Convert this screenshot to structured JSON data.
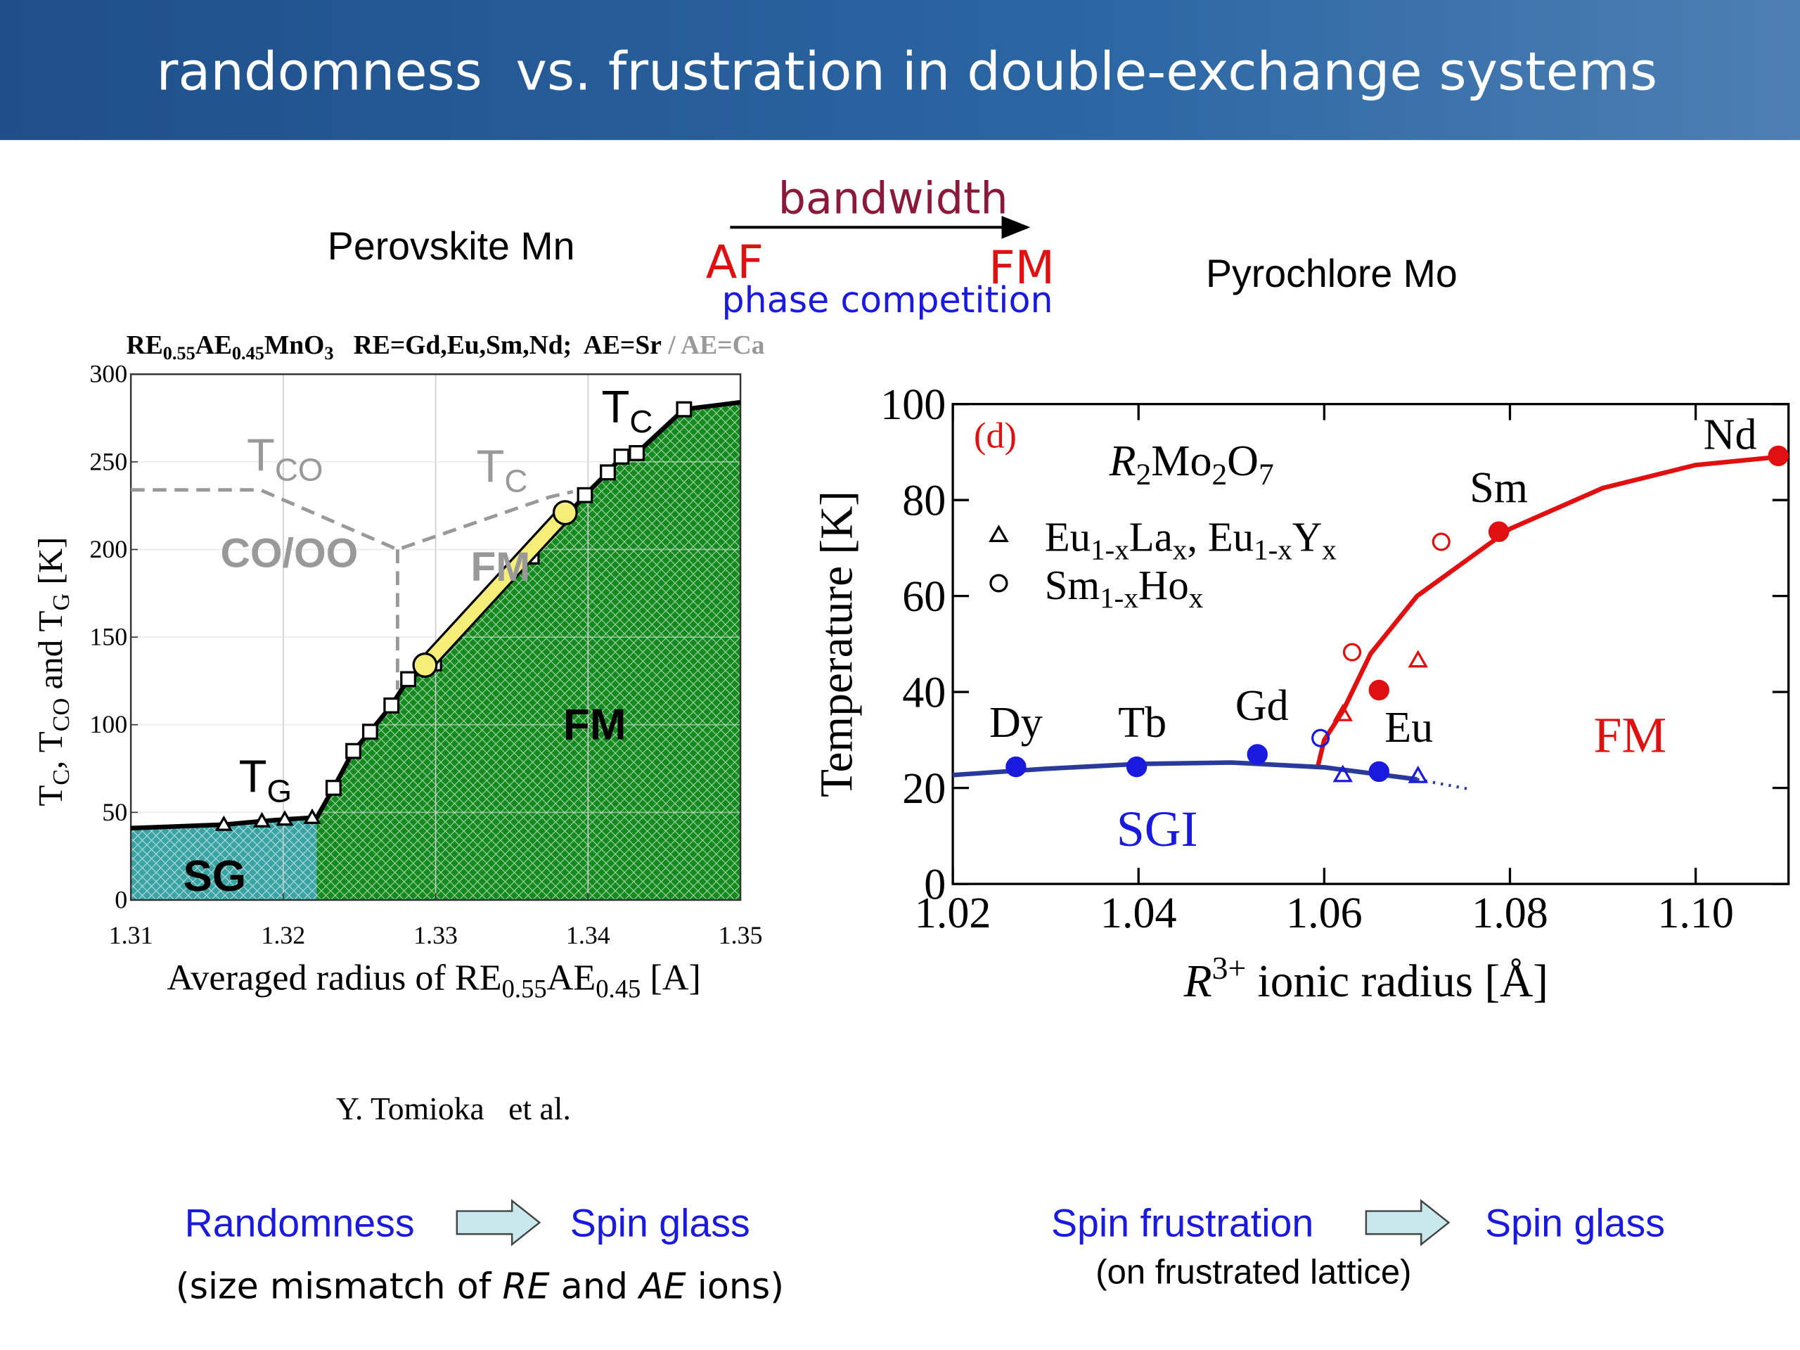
{
  "slide": {
    "title": "randomness  vs. frustration in double-exchange systems",
    "left_heading": "Perovskite Mn",
    "bandwidth": "bandwidth",
    "af": "AF",
    "fm": "FM",
    "phase_competition": "phase competition",
    "right_heading": "Pyrochlore Mo",
    "citation": "Y. Tomioka   et al.",
    "left_summary": {
      "from": "Randomness",
      "to": "Spin glass",
      "note": [
        "(size mismatch of ",
        {
          "i": "RE"
        },
        " and ",
        {
          "i": "AE"
        },
        " ions)"
      ]
    },
    "right_summary": {
      "from": "Spin frustration",
      "to": "Spin glass",
      "note": "(on frustrated lattice)"
    }
  },
  "chart_data": [
    {
      "type": "phase-diagram",
      "title": [
        "RE",
        {
          "sub": "0.55"
        },
        "AE",
        {
          "sub": "0.45"
        },
        "MnO",
        {
          "sub": "3"
        },
        "   RE=Gd,Eu,Sm,Nd;  AE=Sr",
        {
          "t": " / AE=Ca",
          "color": "#999999"
        }
      ],
      "x_label": [
        "Averaged radius of RE",
        {
          "sub": "0.55"
        },
        "AE",
        {
          "sub": "0.45"
        },
        " [A]"
      ],
      "y_label": [
        "T",
        {
          "sub": "C"
        },
        ", T",
        {
          "sub": "CO"
        },
        " and T",
        {
          "sub": "G"
        },
        " [K]"
      ],
      "xlim": [
        1.31,
        1.35
      ],
      "xticks": [
        1.31,
        1.32,
        1.33,
        1.34,
        1.35
      ],
      "ylim": [
        0,
        300
      ],
      "yticks": [
        0,
        50,
        100,
        150,
        200,
        250,
        300
      ],
      "grid": true,
      "regions": [
        {
          "label": "SG",
          "color": "#3aa3a3",
          "xlim": [
            1.31,
            1.3222
          ]
        },
        {
          "label": "FM",
          "color": "#138a1e",
          "xlim": [
            1.3222,
            1.35
          ]
        }
      ],
      "series": [
        {
          "style": "thick",
          "marker": null,
          "color": "#000000",
          "x": [
            1.31,
            1.3161,
            1.3186,
            1.3201,
            1.3219,
            1.3222,
            1.3233,
            1.3246,
            1.3257,
            1.3271,
            1.3282,
            1.3299,
            1.3363,
            1.3398,
            1.3413,
            1.3422,
            1.3432,
            1.3463,
            1.35
          ],
          "y": [
            41,
            43,
            45,
            46,
            47,
            47,
            64,
            85,
            96,
            111,
            126,
            135,
            196,
            231,
            244,
            253,
            255,
            280,
            284
          ]
        },
        {
          "style": "none",
          "marker": "triangle",
          "color": "#000000",
          "x": [
            1.3161,
            1.3186,
            1.3201,
            1.3219
          ],
          "y": [
            43,
            45,
            46,
            47
          ]
        },
        {
          "style": "none",
          "marker": "square",
          "color": "#000000",
          "x": [
            1.3233,
            1.3246,
            1.3257,
            1.3271,
            1.3282,
            1.3299,
            1.3363,
            1.3398,
            1.3413,
            1.3422,
            1.3432,
            1.3463
          ],
          "y": [
            64,
            85,
            96,
            111,
            126,
            135,
            196,
            231,
            244,
            253,
            255,
            280
          ]
        },
        {
          "style": "dashed",
          "marker": null,
          "color": "#999999",
          "x": [
            1.31,
            1.3185,
            1.3275,
            1.3375,
            1.339
          ],
          "y": [
            234,
            234,
            200,
            230,
            233
          ]
        },
        {
          "style": "dashed",
          "marker": null,
          "color": "#999999",
          "x": [
            1.3275,
            1.3275
          ],
          "y": [
            200,
            120
          ]
        },
        {
          "style": "bar",
          "marker": "circle",
          "color": "#f5ef7a",
          "x": [
            1.3293,
            1.3385
          ],
          "y": [
            134,
            221
          ]
        }
      ],
      "annotations": [
        {
          "text": [
            "T",
            {
              "sub": "C"
            }
          ],
          "color": "#000000"
        },
        {
          "text": [
            "T",
            {
              "sub": "CO"
            }
          ],
          "color": "#999999"
        },
        {
          "text": [
            "T",
            {
              "sub": "C"
            }
          ],
          "color": "#999999"
        },
        {
          "text": [
            "T",
            {
              "sub": "G"
            }
          ],
          "color": "#000000"
        },
        {
          "text": [
            "CO/OO"
          ],
          "color": "#999999"
        },
        {
          "text": [
            "FM"
          ],
          "color": "#999999"
        }
      ]
    },
    {
      "type": "scatter",
      "panel": "(d)",
      "formula": [
        {
          "i": "R"
        },
        {
          "sub": "2"
        },
        "Mo",
        {
          "sub": "2"
        },
        "O",
        {
          "sub": "7"
        }
      ],
      "x_label": [
        {
          "i": "R"
        },
        {
          "sup": "3+"
        },
        " ionic radius [Å]"
      ],
      "y_label": "Temperature [K]",
      "xlim": [
        1.02,
        1.11
      ],
      "xticks": [
        1.02,
        1.04,
        1.06,
        1.08,
        {
          "value": 1.1,
          "label": "1.10"
        }
      ],
      "ylim": [
        0,
        100
      ],
      "yticks": [
        0,
        20,
        40,
        60,
        80,
        100
      ],
      "legend": [
        {
          "marker": "triangle",
          "text": [
            "Eu",
            {
              "sub": "1-x"
            },
            "La",
            {
              "sub": "x"
            },
            ", Eu",
            {
              "sub": "1-x"
            },
            "Y",
            {
              "sub": "x"
            }
          ]
        },
        {
          "marker": "circle",
          "text": [
            "Sm",
            {
              "sub": "1-x"
            },
            "Ho",
            {
              "sub": "x"
            }
          ]
        }
      ],
      "series": [
        {
          "style": "none",
          "marker": "circle",
          "fill": true,
          "color": "#1a1adf",
          "x": [
            1.0268,
            1.0398,
            1.0528,
            1.0659
          ],
          "y": [
            24.4,
            24.4,
            27,
            23.4
          ],
          "labels": [
            "Dy",
            "Tb",
            "Gd",
            "Eu"
          ]
        },
        {
          "style": "none",
          "marker": "circle",
          "fill": true,
          "color": "#e01010",
          "x": [
            1.0659,
            1.0788,
            1.1089
          ],
          "y": [
            40.4,
            73.4,
            89.2
          ],
          "labels": [
            null,
            "Sm",
            "Nd"
          ]
        },
        {
          "style": "none",
          "marker": "circle",
          "fill": false,
          "color": "#e01010",
          "x": [
            1.063,
            1.0726
          ],
          "y": [
            48.3,
            71.3
          ]
        },
        {
          "style": "none",
          "marker": "circle",
          "fill": false,
          "color": "#1a1adf",
          "x": [
            1.0596
          ],
          "y": [
            30.4
          ]
        },
        {
          "style": "none",
          "marker": "triangle",
          "fill": false,
          "color": "#e01010",
          "x": [
            1.062,
            1.0701
          ],
          "y": [
            35.4,
            46.6
          ]
        },
        {
          "style": "none",
          "marker": "triangle",
          "fill": false,
          "color": "#1a1adf",
          "x": [
            1.062,
            1.0701
          ],
          "y": [
            22.7,
            22.5
          ]
        },
        {
          "style": "solid",
          "marker": null,
          "color": "#e01010",
          "x": [
            1.0593,
            1.06,
            1.062,
            1.065,
            1.07,
            1.075,
            1.08,
            1.09,
            1.1,
            1.11
          ],
          "y": [
            24.4,
            30,
            36,
            48,
            60,
            67,
            74,
            82.5,
            87.3,
            89.2
          ]
        },
        {
          "style": "solid",
          "marker": null,
          "color": "#2a3a9a",
          "x": [
            1.02,
            1.03,
            1.04,
            1.05,
            1.06,
            1.07
          ],
          "y": [
            22.7,
            24,
            25,
            25.3,
            24.3,
            21.8
          ]
        },
        {
          "style": "dotted",
          "marker": null,
          "color": "#2a3a9a",
          "x": [
            1.07,
            1.0755
          ],
          "y": [
            21.8,
            19.8
          ]
        }
      ],
      "annotations": [
        {
          "text": [
            "FM"
          ],
          "color": "#e01010"
        },
        {
          "text": [
            "SGI"
          ],
          "color": "#1a1adf"
        }
      ]
    }
  ]
}
